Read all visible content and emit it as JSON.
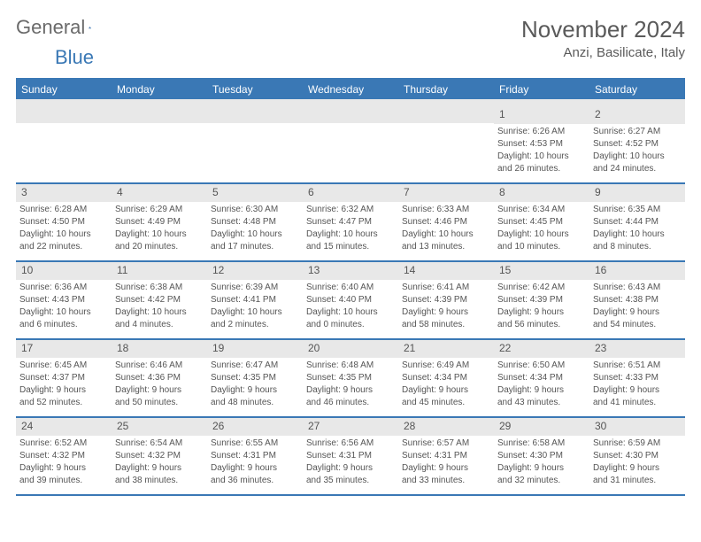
{
  "logo": {
    "text_a": "General",
    "text_b": "Blue"
  },
  "title": "November 2024",
  "location": "Anzi, Basilicate, Italy",
  "colors": {
    "accent": "#3a78b5",
    "band": "#e8e8e8",
    "text": "#555555",
    "bg": "#ffffff"
  },
  "weekdays": [
    "Sunday",
    "Monday",
    "Tuesday",
    "Wednesday",
    "Thursday",
    "Friday",
    "Saturday"
  ],
  "weeks": [
    [
      {
        "n": "",
        "sr": "",
        "ss": "",
        "dl1": "",
        "dl2": ""
      },
      {
        "n": "",
        "sr": "",
        "ss": "",
        "dl1": "",
        "dl2": ""
      },
      {
        "n": "",
        "sr": "",
        "ss": "",
        "dl1": "",
        "dl2": ""
      },
      {
        "n": "",
        "sr": "",
        "ss": "",
        "dl1": "",
        "dl2": ""
      },
      {
        "n": "",
        "sr": "",
        "ss": "",
        "dl1": "",
        "dl2": ""
      },
      {
        "n": "1",
        "sr": "Sunrise: 6:26 AM",
        "ss": "Sunset: 4:53 PM",
        "dl1": "Daylight: 10 hours",
        "dl2": "and 26 minutes."
      },
      {
        "n": "2",
        "sr": "Sunrise: 6:27 AM",
        "ss": "Sunset: 4:52 PM",
        "dl1": "Daylight: 10 hours",
        "dl2": "and 24 minutes."
      }
    ],
    [
      {
        "n": "3",
        "sr": "Sunrise: 6:28 AM",
        "ss": "Sunset: 4:50 PM",
        "dl1": "Daylight: 10 hours",
        "dl2": "and 22 minutes."
      },
      {
        "n": "4",
        "sr": "Sunrise: 6:29 AM",
        "ss": "Sunset: 4:49 PM",
        "dl1": "Daylight: 10 hours",
        "dl2": "and 20 minutes."
      },
      {
        "n": "5",
        "sr": "Sunrise: 6:30 AM",
        "ss": "Sunset: 4:48 PM",
        "dl1": "Daylight: 10 hours",
        "dl2": "and 17 minutes."
      },
      {
        "n": "6",
        "sr": "Sunrise: 6:32 AM",
        "ss": "Sunset: 4:47 PM",
        "dl1": "Daylight: 10 hours",
        "dl2": "and 15 minutes."
      },
      {
        "n": "7",
        "sr": "Sunrise: 6:33 AM",
        "ss": "Sunset: 4:46 PM",
        "dl1": "Daylight: 10 hours",
        "dl2": "and 13 minutes."
      },
      {
        "n": "8",
        "sr": "Sunrise: 6:34 AM",
        "ss": "Sunset: 4:45 PM",
        "dl1": "Daylight: 10 hours",
        "dl2": "and 10 minutes."
      },
      {
        "n": "9",
        "sr": "Sunrise: 6:35 AM",
        "ss": "Sunset: 4:44 PM",
        "dl1": "Daylight: 10 hours",
        "dl2": "and 8 minutes."
      }
    ],
    [
      {
        "n": "10",
        "sr": "Sunrise: 6:36 AM",
        "ss": "Sunset: 4:43 PM",
        "dl1": "Daylight: 10 hours",
        "dl2": "and 6 minutes."
      },
      {
        "n": "11",
        "sr": "Sunrise: 6:38 AM",
        "ss": "Sunset: 4:42 PM",
        "dl1": "Daylight: 10 hours",
        "dl2": "and 4 minutes."
      },
      {
        "n": "12",
        "sr": "Sunrise: 6:39 AM",
        "ss": "Sunset: 4:41 PM",
        "dl1": "Daylight: 10 hours",
        "dl2": "and 2 minutes."
      },
      {
        "n": "13",
        "sr": "Sunrise: 6:40 AM",
        "ss": "Sunset: 4:40 PM",
        "dl1": "Daylight: 10 hours",
        "dl2": "and 0 minutes."
      },
      {
        "n": "14",
        "sr": "Sunrise: 6:41 AM",
        "ss": "Sunset: 4:39 PM",
        "dl1": "Daylight: 9 hours",
        "dl2": "and 58 minutes."
      },
      {
        "n": "15",
        "sr": "Sunrise: 6:42 AM",
        "ss": "Sunset: 4:39 PM",
        "dl1": "Daylight: 9 hours",
        "dl2": "and 56 minutes."
      },
      {
        "n": "16",
        "sr": "Sunrise: 6:43 AM",
        "ss": "Sunset: 4:38 PM",
        "dl1": "Daylight: 9 hours",
        "dl2": "and 54 minutes."
      }
    ],
    [
      {
        "n": "17",
        "sr": "Sunrise: 6:45 AM",
        "ss": "Sunset: 4:37 PM",
        "dl1": "Daylight: 9 hours",
        "dl2": "and 52 minutes."
      },
      {
        "n": "18",
        "sr": "Sunrise: 6:46 AM",
        "ss": "Sunset: 4:36 PM",
        "dl1": "Daylight: 9 hours",
        "dl2": "and 50 minutes."
      },
      {
        "n": "19",
        "sr": "Sunrise: 6:47 AM",
        "ss": "Sunset: 4:35 PM",
        "dl1": "Daylight: 9 hours",
        "dl2": "and 48 minutes."
      },
      {
        "n": "20",
        "sr": "Sunrise: 6:48 AM",
        "ss": "Sunset: 4:35 PM",
        "dl1": "Daylight: 9 hours",
        "dl2": "and 46 minutes."
      },
      {
        "n": "21",
        "sr": "Sunrise: 6:49 AM",
        "ss": "Sunset: 4:34 PM",
        "dl1": "Daylight: 9 hours",
        "dl2": "and 45 minutes."
      },
      {
        "n": "22",
        "sr": "Sunrise: 6:50 AM",
        "ss": "Sunset: 4:34 PM",
        "dl1": "Daylight: 9 hours",
        "dl2": "and 43 minutes."
      },
      {
        "n": "23",
        "sr": "Sunrise: 6:51 AM",
        "ss": "Sunset: 4:33 PM",
        "dl1": "Daylight: 9 hours",
        "dl2": "and 41 minutes."
      }
    ],
    [
      {
        "n": "24",
        "sr": "Sunrise: 6:52 AM",
        "ss": "Sunset: 4:32 PM",
        "dl1": "Daylight: 9 hours",
        "dl2": "and 39 minutes."
      },
      {
        "n": "25",
        "sr": "Sunrise: 6:54 AM",
        "ss": "Sunset: 4:32 PM",
        "dl1": "Daylight: 9 hours",
        "dl2": "and 38 minutes."
      },
      {
        "n": "26",
        "sr": "Sunrise: 6:55 AM",
        "ss": "Sunset: 4:31 PM",
        "dl1": "Daylight: 9 hours",
        "dl2": "and 36 minutes."
      },
      {
        "n": "27",
        "sr": "Sunrise: 6:56 AM",
        "ss": "Sunset: 4:31 PM",
        "dl1": "Daylight: 9 hours",
        "dl2": "and 35 minutes."
      },
      {
        "n": "28",
        "sr": "Sunrise: 6:57 AM",
        "ss": "Sunset: 4:31 PM",
        "dl1": "Daylight: 9 hours",
        "dl2": "and 33 minutes."
      },
      {
        "n": "29",
        "sr": "Sunrise: 6:58 AM",
        "ss": "Sunset: 4:30 PM",
        "dl1": "Daylight: 9 hours",
        "dl2": "and 32 minutes."
      },
      {
        "n": "30",
        "sr": "Sunrise: 6:59 AM",
        "ss": "Sunset: 4:30 PM",
        "dl1": "Daylight: 9 hours",
        "dl2": "and 31 minutes."
      }
    ]
  ]
}
